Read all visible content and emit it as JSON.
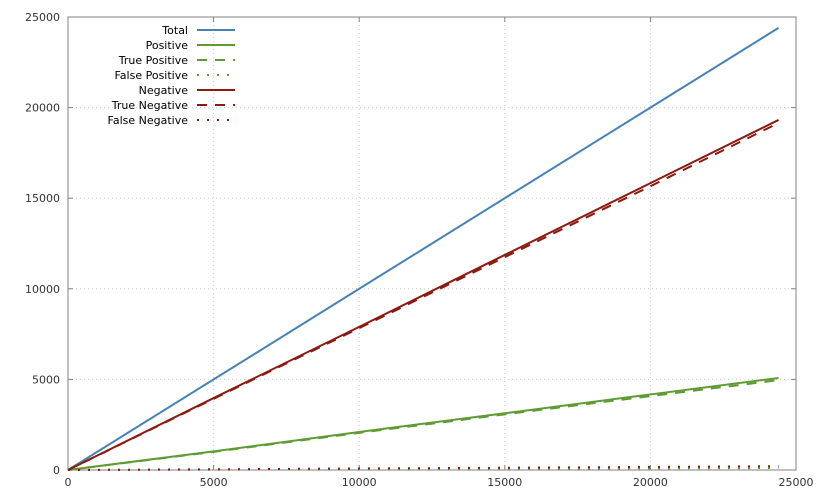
{
  "chart_data": {
    "type": "line",
    "title": "",
    "xlabel": "",
    "ylabel": "",
    "xlim": [
      0,
      25000
    ],
    "ylim": [
      0,
      25000
    ],
    "xticks": [
      0,
      5000,
      10000,
      15000,
      20000,
      25000
    ],
    "yticks": [
      0,
      5000,
      10000,
      15000,
      20000,
      25000
    ],
    "grid": true,
    "legend_position": "top-left",
    "series": [
      {
        "name": "Total",
        "color": "#4682b4",
        "style": "solid",
        "x": [
          0,
          24400
        ],
        "y": [
          0,
          24400
        ]
      },
      {
        "name": "Positive",
        "color": "#5e9b32",
        "style": "solid",
        "x": [
          0,
          5000,
          10000,
          15000,
          20000,
          24400
        ],
        "y": [
          0,
          1030,
          2100,
          3130,
          4170,
          5080
        ]
      },
      {
        "name": "True Positive",
        "color": "#5e9b32",
        "style": "dashed",
        "x": [
          0,
          5000,
          10000,
          15000,
          20000,
          24400
        ],
        "y": [
          0,
          1000,
          2050,
          3070,
          4080,
          4960
        ]
      },
      {
        "name": "False Positive",
        "color": "#5e9b32",
        "style": "dotted",
        "x": [
          0,
          5000,
          10000,
          15000,
          20000,
          24400
        ],
        "y": [
          0,
          20,
          45,
          65,
          90,
          110
        ]
      },
      {
        "name": "Negative",
        "color": "#8b1a10",
        "style": "solid",
        "x": [
          0,
          5000,
          10000,
          15000,
          20000,
          24400
        ],
        "y": [
          0,
          3970,
          7900,
          11870,
          15830,
          19320
        ]
      },
      {
        "name": "True Negative",
        "color": "#8b1a10",
        "style": "dashed",
        "x": [
          0,
          5000,
          10000,
          15000,
          20000,
          24400
        ],
        "y": [
          0,
          3930,
          7830,
          11750,
          15660,
          19150
        ]
      },
      {
        "name": "False Negative",
        "color": "#8b1a10",
        "style": "dotted",
        "x": [
          0,
          5000,
          10000,
          15000,
          20000,
          24400
        ],
        "y": [
          0,
          40,
          85,
          125,
          170,
          210
        ]
      }
    ]
  }
}
